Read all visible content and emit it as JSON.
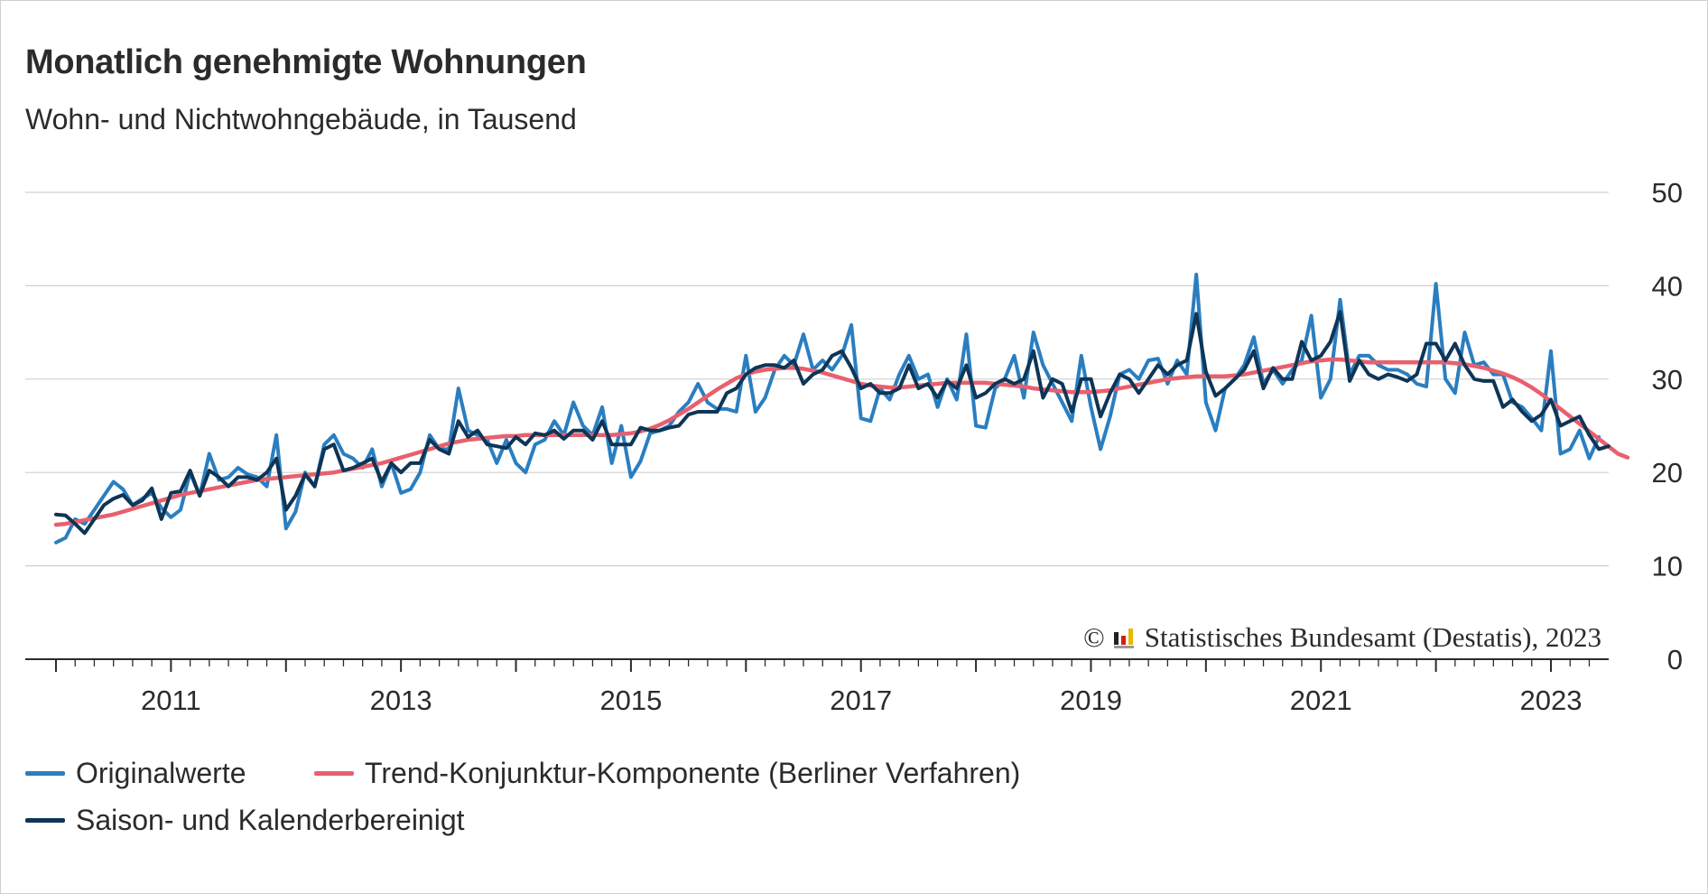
{
  "title": "Monatlich genehmigte Wohnungen",
  "subtitle": "Wohn- und Nichtwohngebäude, in Tausend",
  "copyright": "Statistisches Bundesamt (Destatis), 2023",
  "copyright_symbol": "©",
  "colors": {
    "original": "#2a7ec0",
    "trend": "#e8606e",
    "adjusted": "#0e3556",
    "grid": "#d0d0d0",
    "text": "#2b2b2b"
  },
  "chart_data": {
    "type": "line",
    "title": "Monatlich genehmigte Wohnungen",
    "subtitle": "Wohn- und Nichtwohngebäude, in Tausend",
    "x_start": "2010-01",
    "x_end": "2023-05",
    "xlim": [
      "2010-01",
      "2023-06"
    ],
    "ylim": [
      0,
      50
    ],
    "yticks": [
      "0",
      "10",
      "20",
      "30",
      "40",
      "50"
    ],
    "xticks": [
      "2011",
      "2013",
      "2015",
      "2017",
      "2019",
      "2021",
      "2023"
    ],
    "grid": true,
    "legend_position": "bottom",
    "series": [
      {
        "name": "Originalwerte",
        "color": "#2a7ec0",
        "values": [
          12.5,
          13.0,
          15.0,
          14.5,
          16.0,
          17.5,
          19.0,
          18.2,
          16.5,
          17.2,
          17.8,
          16.2,
          15.2,
          16.0,
          20.0,
          17.5,
          22.0,
          19.2,
          19.5,
          20.5,
          19.8,
          19.5,
          18.5,
          24.0,
          14.0,
          15.8,
          20.0,
          18.5,
          23.0,
          24.0,
          22.0,
          21.5,
          20.5,
          22.5,
          18.5,
          21.0,
          17.8,
          18.2,
          20.0,
          24.0,
          22.5,
          22.5,
          29.0,
          24.5,
          24.0,
          23.5,
          21.0,
          23.5,
          21.0,
          20.0,
          23.0,
          23.5,
          25.5,
          24.0,
          27.5,
          25.0,
          24.0,
          27.0,
          21.0,
          25.0,
          19.5,
          21.2,
          24.2,
          24.5,
          25.0,
          26.5,
          27.5,
          29.5,
          27.5,
          26.8,
          26.8,
          26.5,
          32.5,
          26.5,
          28.0,
          31.0,
          32.5,
          31.5,
          34.8,
          31.0,
          32.0,
          31.0,
          32.5,
          35.8,
          25.8,
          25.5,
          29.0,
          27.8,
          30.5,
          32.5,
          30.0,
          30.5,
          27.0,
          30.0,
          27.8,
          34.8,
          25.0,
          24.8,
          29.0,
          30.0,
          32.5,
          28.0,
          35.0,
          31.5,
          29.5,
          27.5,
          25.5,
          32.5,
          27.0,
          22.5,
          26.0,
          30.5,
          31.0,
          30.0,
          32.0,
          32.2,
          29.5,
          32.0,
          30.5,
          41.2,
          27.5,
          24.5,
          29.0,
          30.0,
          31.5,
          34.5,
          29.5,
          31.0,
          29.5,
          31.0,
          32.0,
          36.8,
          28.0,
          30.0,
          38.5,
          30.5,
          32.5,
          32.5,
          31.5,
          31.0,
          31.0,
          30.5,
          29.5,
          29.2,
          40.2,
          30.0,
          28.5,
          35.0,
          31.5,
          31.8,
          30.5,
          30.5,
          27.5,
          27.0,
          25.8,
          24.5,
          33.0,
          22.0,
          22.5,
          24.5,
          21.5,
          23.8
        ]
      },
      {
        "name": "Trend-Konjunktur-Komponente (Berliner Verfahren)",
        "color": "#e8606e",
        "values": [
          14.4,
          14.5,
          14.7,
          14.9,
          15.1,
          15.3,
          15.5,
          15.8,
          16.1,
          16.4,
          16.7,
          17.0,
          17.3,
          17.6,
          17.8,
          18.0,
          18.2,
          18.4,
          18.6,
          18.8,
          19.0,
          19.2,
          19.3,
          19.4,
          19.5,
          19.6,
          19.7,
          19.8,
          19.9,
          20.0,
          20.2,
          20.4,
          20.6,
          20.8,
          21.0,
          21.3,
          21.6,
          21.9,
          22.2,
          22.5,
          22.8,
          23.1,
          23.3,
          23.5,
          23.6,
          23.7,
          23.8,
          23.9,
          23.9,
          24.0,
          24.0,
          24.0,
          24.0,
          24.0,
          24.0,
          24.0,
          24.0,
          24.0,
          24.0,
          24.1,
          24.2,
          24.4,
          24.7,
          25.1,
          25.6,
          26.2,
          26.8,
          27.5,
          28.2,
          28.9,
          29.5,
          30.1,
          30.5,
          30.8,
          31.0,
          31.1,
          31.2,
          31.2,
          31.1,
          30.9,
          30.7,
          30.4,
          30.1,
          29.8,
          29.5,
          29.3,
          29.2,
          29.1,
          29.1,
          29.2,
          29.3,
          29.4,
          29.5,
          29.6,
          29.6,
          29.6,
          29.6,
          29.6,
          29.5,
          29.4,
          29.3,
          29.2,
          29.0,
          28.9,
          28.8,
          28.7,
          28.6,
          28.6,
          28.6,
          28.7,
          28.8,
          29.0,
          29.2,
          29.4,
          29.6,
          29.8,
          30.0,
          30.1,
          30.2,
          30.3,
          30.3,
          30.3,
          30.3,
          30.4,
          30.5,
          30.7,
          30.9,
          31.1,
          31.3,
          31.5,
          31.7,
          31.9,
          32.0,
          32.1,
          32.1,
          32.0,
          31.9,
          31.8,
          31.8,
          31.8,
          31.8,
          31.8,
          31.8,
          31.8,
          31.8,
          31.8,
          31.7,
          31.6,
          31.4,
          31.2,
          30.9,
          30.6,
          30.2,
          29.7,
          29.1,
          28.4,
          27.6,
          26.8,
          26.0,
          25.2,
          24.4,
          23.6,
          22.8,
          22.0,
          21.6
        ]
      },
      {
        "name": "Saison- und Kalenderbereinigt",
        "color": "#0e3556",
        "values": [
          15.5,
          15.4,
          14.5,
          13.5,
          15.0,
          16.5,
          17.2,
          17.6,
          16.5,
          17.0,
          18.3,
          15.0,
          17.8,
          18.0,
          20.2,
          17.5,
          20.2,
          19.5,
          18.5,
          19.5,
          19.5,
          19.2,
          20.0,
          21.5,
          16.0,
          17.5,
          19.8,
          18.5,
          22.5,
          23.0,
          20.2,
          20.5,
          21.0,
          21.5,
          19.0,
          21.0,
          20.0,
          21.0,
          21.0,
          23.5,
          22.5,
          22.0,
          25.5,
          23.8,
          24.5,
          23.0,
          22.8,
          22.6,
          23.8,
          23.0,
          24.2,
          24.0,
          24.5,
          23.6,
          24.5,
          24.5,
          23.5,
          25.5,
          23.0,
          23.0,
          23.0,
          24.8,
          24.5,
          24.5,
          24.8,
          25.0,
          26.2,
          26.5,
          26.5,
          26.5,
          28.5,
          29.0,
          30.5,
          31.2,
          31.5,
          31.5,
          31.2,
          32.0,
          29.5,
          30.5,
          31.0,
          32.5,
          33.0,
          31.2,
          29.0,
          29.5,
          28.5,
          28.5,
          29.0,
          31.5,
          29.0,
          29.5,
          28.0,
          29.8,
          29.0,
          31.5,
          28.0,
          28.5,
          29.5,
          30.0,
          29.5,
          30.0,
          33.0,
          28.0,
          30.0,
          29.5,
          26.5,
          30.0,
          30.0,
          26.0,
          28.5,
          30.5,
          30.0,
          28.5,
          30.0,
          31.5,
          30.5,
          31.5,
          32.0,
          37.0,
          30.8,
          28.2,
          29.0,
          30.0,
          31.0,
          33.0,
          29.0,
          31.2,
          30.0,
          30.0,
          34.0,
          32.0,
          32.5,
          34.0,
          37.2,
          29.8,
          32.0,
          30.5,
          30.0,
          30.5,
          30.2,
          29.8,
          30.5,
          33.8,
          33.8,
          32.0,
          33.8,
          31.5,
          30.0,
          29.8,
          29.8,
          27.0,
          27.8,
          26.5,
          25.5,
          26.2,
          27.8,
          25.0,
          25.5,
          26.0,
          24.0,
          22.5,
          22.8
        ]
      }
    ]
  }
}
